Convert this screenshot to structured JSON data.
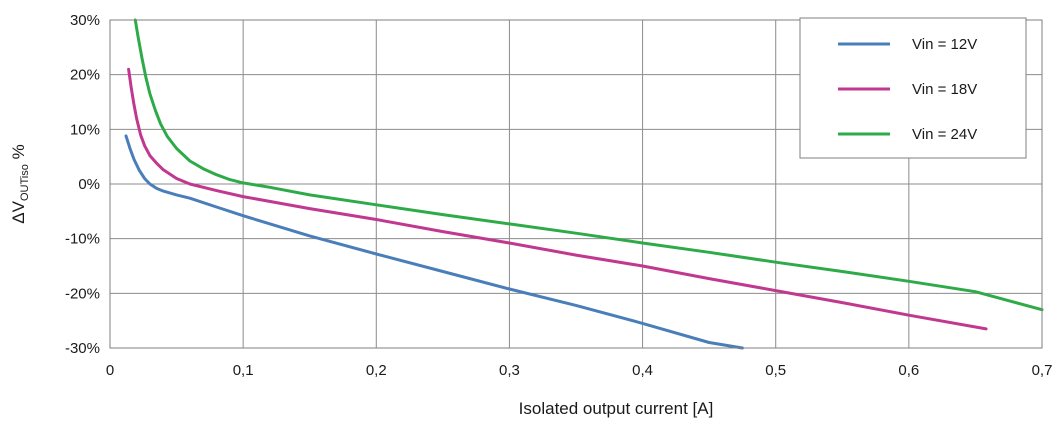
{
  "chart_data": {
    "type": "line",
    "title": "",
    "xlabel": "Isolated output current [A]",
    "ylabel": {
      "prefix": "ΔV",
      "subscript": "OUTiso",
      "suffix": " %"
    },
    "xlim": [
      0,
      0.7
    ],
    "ylim": [
      -30,
      30
    ],
    "x_ticks": [
      0,
      0.1,
      0.2,
      0.3,
      0.4,
      0.5,
      0.6,
      0.7
    ],
    "x_tick_labels": [
      "0",
      "0,1",
      "0,2",
      "0,3",
      "0,4",
      "0,5",
      "0,6",
      "0,7"
    ],
    "y_ticks": [
      -30,
      -20,
      -10,
      0,
      10,
      20,
      30
    ],
    "y_tick_labels": [
      "-30%",
      "-20%",
      "-10%",
      "0%",
      "10%",
      "20%",
      "30%"
    ],
    "grid": true,
    "legend": "top-right",
    "series": [
      {
        "name": "Vin = 12V",
        "color": "#4a7ebb",
        "points": [
          [
            0.012,
            8.8
          ],
          [
            0.015,
            6.5
          ],
          [
            0.018,
            4.5
          ],
          [
            0.022,
            2.5
          ],
          [
            0.026,
            1.0
          ],
          [
            0.03,
            0.0
          ],
          [
            0.035,
            -0.8
          ],
          [
            0.04,
            -1.3
          ],
          [
            0.05,
            -2.0
          ],
          [
            0.06,
            -2.6
          ],
          [
            0.08,
            -4.2
          ],
          [
            0.1,
            -5.8
          ],
          [
            0.15,
            -9.5
          ],
          [
            0.2,
            -12.8
          ],
          [
            0.25,
            -16.0
          ],
          [
            0.3,
            -19.2
          ],
          [
            0.35,
            -22.2
          ],
          [
            0.4,
            -25.5
          ],
          [
            0.45,
            -29.0
          ],
          [
            0.475,
            -30.2
          ]
        ]
      },
      {
        "name": "Vin = 18V",
        "color": "#c0388f",
        "points": [
          [
            0.014,
            21.0
          ],
          [
            0.016,
            17.5
          ],
          [
            0.018,
            14.5
          ],
          [
            0.02,
            12.0
          ],
          [
            0.023,
            9.0
          ],
          [
            0.026,
            7.0
          ],
          [
            0.03,
            5.2
          ],
          [
            0.035,
            3.8
          ],
          [
            0.04,
            2.6
          ],
          [
            0.05,
            1.0
          ],
          [
            0.06,
            0.0
          ],
          [
            0.08,
            -1.2
          ],
          [
            0.1,
            -2.3
          ],
          [
            0.15,
            -4.5
          ],
          [
            0.2,
            -6.5
          ],
          [
            0.25,
            -8.7
          ],
          [
            0.3,
            -10.8
          ],
          [
            0.35,
            -13.0
          ],
          [
            0.4,
            -15.0
          ],
          [
            0.45,
            -17.3
          ],
          [
            0.5,
            -19.5
          ],
          [
            0.55,
            -21.7
          ],
          [
            0.6,
            -24.0
          ],
          [
            0.658,
            -26.5
          ]
        ]
      },
      {
        "name": "Vin = 24V",
        "color": "#2eab48",
        "points": [
          [
            0.019,
            30.0
          ],
          [
            0.021,
            27.0
          ],
          [
            0.024,
            23.0
          ],
          [
            0.027,
            19.5
          ],
          [
            0.03,
            16.5
          ],
          [
            0.034,
            13.5
          ],
          [
            0.038,
            11.0
          ],
          [
            0.043,
            8.7
          ],
          [
            0.05,
            6.5
          ],
          [
            0.06,
            4.2
          ],
          [
            0.07,
            2.8
          ],
          [
            0.08,
            1.7
          ],
          [
            0.09,
            0.8
          ],
          [
            0.1,
            0.2
          ],
          [
            0.12,
            -0.6
          ],
          [
            0.15,
            -2.0
          ],
          [
            0.2,
            -3.8
          ],
          [
            0.25,
            -5.6
          ],
          [
            0.3,
            -7.3
          ],
          [
            0.35,
            -9.0
          ],
          [
            0.4,
            -10.8
          ],
          [
            0.45,
            -12.5
          ],
          [
            0.5,
            -14.3
          ],
          [
            0.55,
            -16.0
          ],
          [
            0.6,
            -17.8
          ],
          [
            0.65,
            -19.7
          ],
          [
            0.7,
            -23.0
          ]
        ]
      }
    ]
  }
}
